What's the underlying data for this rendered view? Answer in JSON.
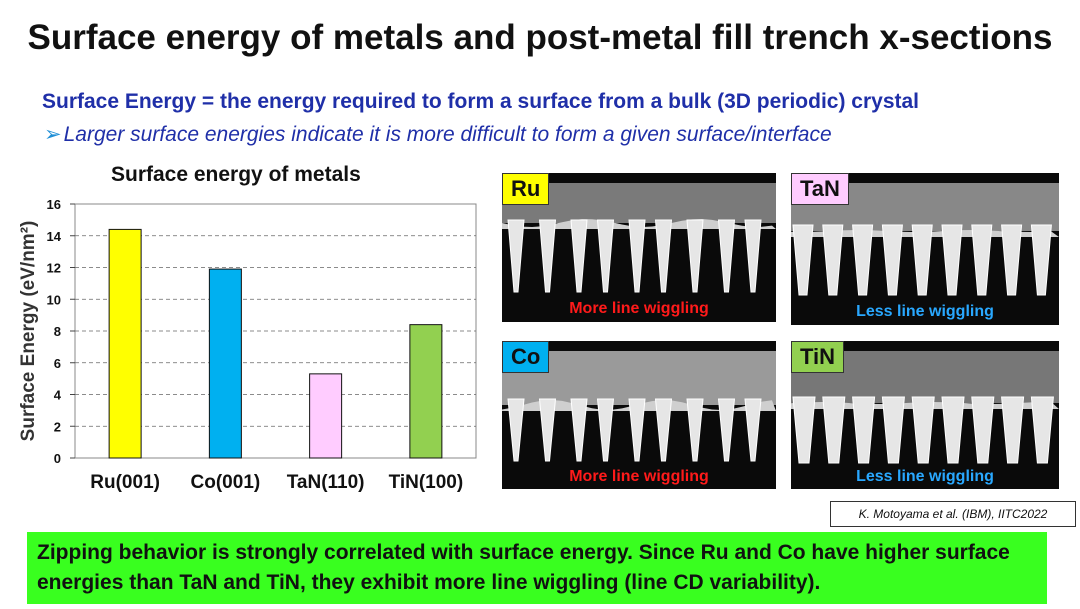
{
  "slide": {
    "title": "Surface energy of metals and post-metal fill trench x-sections",
    "definition": "Surface Energy = the energy required to form a surface from a bulk (3D periodic) crystal",
    "bullet": "Larger surface energies indicate it is more difficult to form a given surface/interface",
    "citation": "K. Motoyama et al. (IBM), IITC2022",
    "footer": "Zipping behavior is strongly correlated with surface energy. Since Ru and Co have higher surface energies than TaN and TiN, they exhibit more line wiggling (line CD variability)."
  },
  "chart_data": {
    "type": "bar",
    "title": "Surface energy of metals",
    "ylabel": "Surface Energy (eV/nm²)",
    "categories": [
      "Ru(001)",
      "Co(001)",
      "TaN(110)",
      "TiN(100)"
    ],
    "values": [
      14.4,
      11.9,
      5.3,
      8.4
    ],
    "colors": [
      "#ffff00",
      "#00b0f0",
      "#ffccff",
      "#92d050"
    ],
    "ylim": [
      0,
      16
    ],
    "yticks": [
      0,
      2,
      4,
      6,
      8,
      10,
      12,
      14,
      16
    ],
    "grid": true
  },
  "panels": [
    {
      "label": "Ru",
      "label_color": "#ffff00",
      "caption": "More line wiggling",
      "caption_color": "red"
    },
    {
      "label": "TaN",
      "label_color": "#ffccff",
      "caption": "Less line wiggling",
      "caption_color": "blue"
    },
    {
      "label": "Co",
      "label_color": "#00b0f0",
      "caption": "More line wiggling",
      "caption_color": "red"
    },
    {
      "label": "TiN",
      "label_color": "#92d050",
      "caption": "Less line wiggling",
      "caption_color": "blue"
    }
  ]
}
